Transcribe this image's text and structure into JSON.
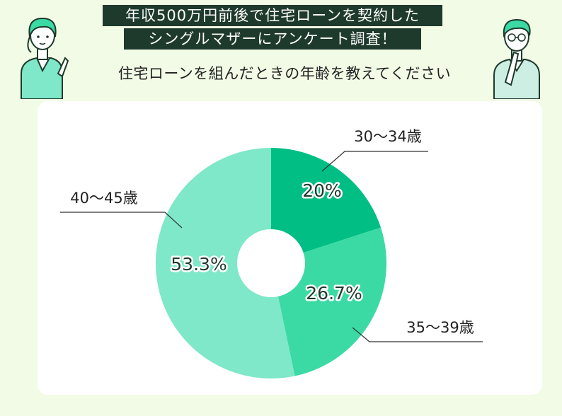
{
  "header": {
    "title_line1": "年収500万円前後で住宅ローンを契約した",
    "title_line2": "シングルマザーにアンケート調査！",
    "question": "住宅ローンを組んだときの年齢を教えてください"
  },
  "colors": {
    "background": "#f1fbe6",
    "title_bg": "#1e3a2c",
    "slice_30_34": "#00be84",
    "slice_35_39": "#3bdaa4",
    "slice_40_45": "#7ee8c8"
  },
  "chart_data": {
    "type": "pie",
    "donut": true,
    "title": "",
    "categories": [
      "30〜34歳",
      "35〜39歳",
      "40〜45歳"
    ],
    "values": [
      20,
      26.7,
      53.3
    ],
    "value_labels": [
      "20%",
      "26.7%",
      "53.3%"
    ],
    "unit": "%"
  }
}
